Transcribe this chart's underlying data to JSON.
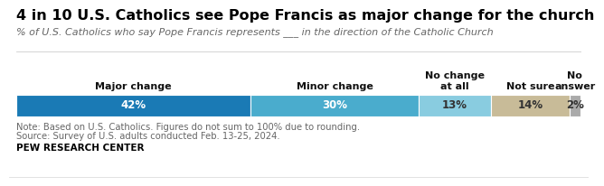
{
  "title": "4 in 10 U.S. Catholics see Pope Francis as major change for the church",
  "subtitle": "% of U.S. Catholics who say Pope Francis represents ___ in the direction of the Catholic Church",
  "categories": [
    "Major change",
    "Minor change",
    "No change\nat all",
    "Not sure",
    "No\nanswer"
  ],
  "values": [
    42,
    30,
    13,
    14,
    2
  ],
  "labels": [
    "42%",
    "30%",
    "13%",
    "14%",
    "2%"
  ],
  "colors": [
    "#1a7ab5",
    "#4aaccd",
    "#89cce0",
    "#c8bb98",
    "#aaaaaa"
  ],
  "label_colors": [
    "white",
    "white",
    "#333333",
    "#333333",
    "#333333"
  ],
  "note_line1": "Note: Based on U.S. Catholics. Figures do not sum to 100% due to rounding.",
  "note_line2": "Source: Survey of U.S. adults conducted Feb. 13-25, 2024.",
  "source": "PEW RESEARCH CENTER",
  "bg_color": "#ffffff",
  "title_fontsize": 11.5,
  "subtitle_fontsize": 8.0,
  "cat_fontsize": 8.0,
  "val_fontsize": 8.5,
  "note_fontsize": 7.2,
  "source_fontsize": 7.5
}
